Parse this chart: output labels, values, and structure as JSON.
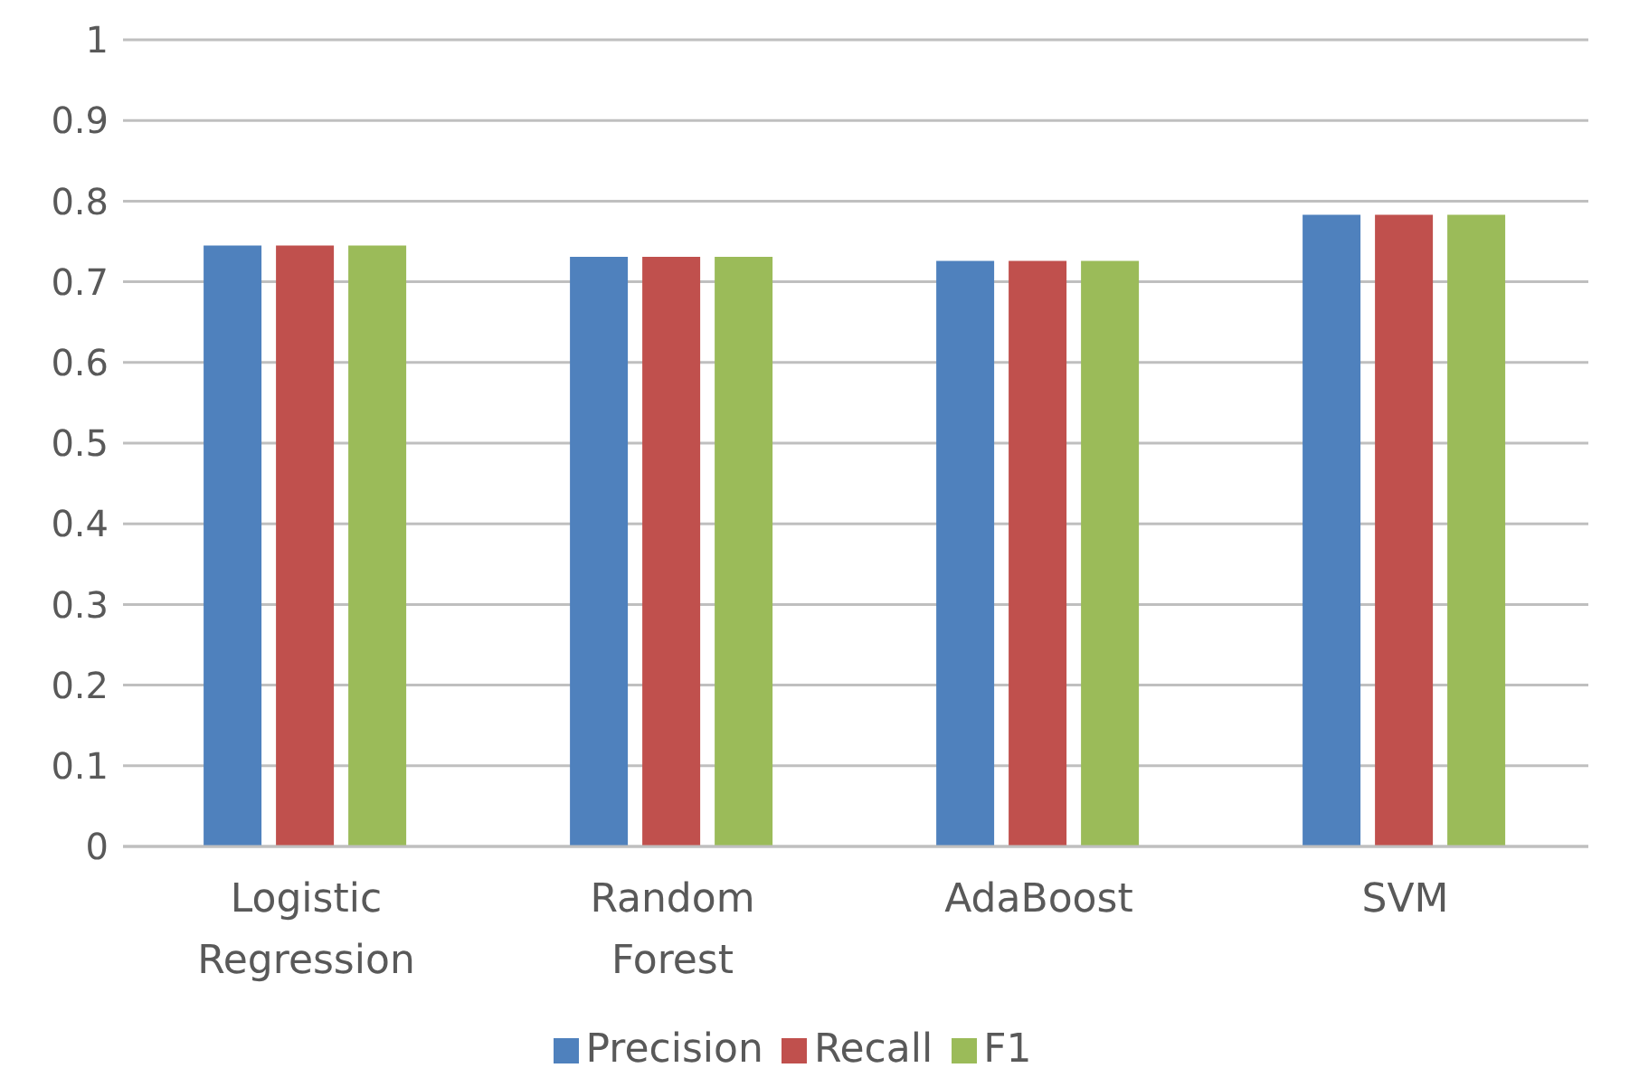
{
  "chart_data": {
    "type": "bar",
    "categories": [
      "Logistic Regression",
      "Random Forest",
      "AdaBoost",
      "SVM"
    ],
    "series": [
      {
        "name": "Precision",
        "color": "#4f81bd",
        "values": [
          0.745,
          0.731,
          0.726,
          0.783
        ]
      },
      {
        "name": "Recall",
        "color": "#c0504d",
        "values": [
          0.745,
          0.731,
          0.726,
          0.783
        ]
      },
      {
        "name": "F1",
        "color": "#9bbb59",
        "values": [
          0.745,
          0.731,
          0.726,
          0.783
        ]
      }
    ],
    "ylim": [
      0,
      1
    ],
    "yticks": [
      0,
      0.1,
      0.2,
      0.3,
      0.4,
      0.5,
      0.6,
      0.7,
      0.8,
      0.9,
      1
    ],
    "grid": "y",
    "legend": "bottom"
  }
}
